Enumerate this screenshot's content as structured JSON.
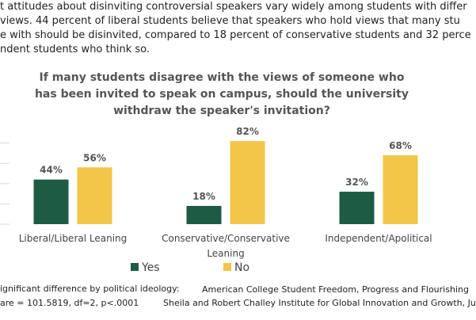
{
  "paragraph": [
    "t attitudes about disinviting controversial speakers vary widely among students with differ",
    " views.  44 percent of liberal students believe that speakers who hold views that many stu",
    "e with should be disinvited, compared to 18 percent of conservative students and 32 perce",
    "ndent students who think so."
  ],
  "chart_data": {
    "type": "bar",
    "title": "If many students disagree with the views of someone who has been invited to speak on campus, should the university withdraw the speaker's invitation?",
    "categories": [
      "Liberal/Liberal Leaning",
      "Conservative/Conservative Leaning",
      "Independent/Apolitical"
    ],
    "series": [
      {
        "name": "Yes",
        "color": "#1e5b45",
        "values": [
          44,
          18,
          32
        ],
        "value_labels": [
          "44%",
          "18%",
          "32%"
        ]
      },
      {
        "name": "No",
        "color": "#f2c649",
        "values": [
          56,
          82,
          68
        ],
        "value_labels": [
          "56%",
          "82%",
          "68%"
        ]
      }
    ],
    "ylim": [
      0,
      100
    ],
    "grid": true,
    "legend": "bottom",
    "note": [
      "ignificant difference by political ideology:",
      "are = 101.5819, df=2, p<.0001"
    ],
    "source": [
      "American College Student Freedom, Progress and Flourishing",
      "Sheila and Robert Challey Institute for Global Innovation and Growth, Ju"
    ]
  }
}
